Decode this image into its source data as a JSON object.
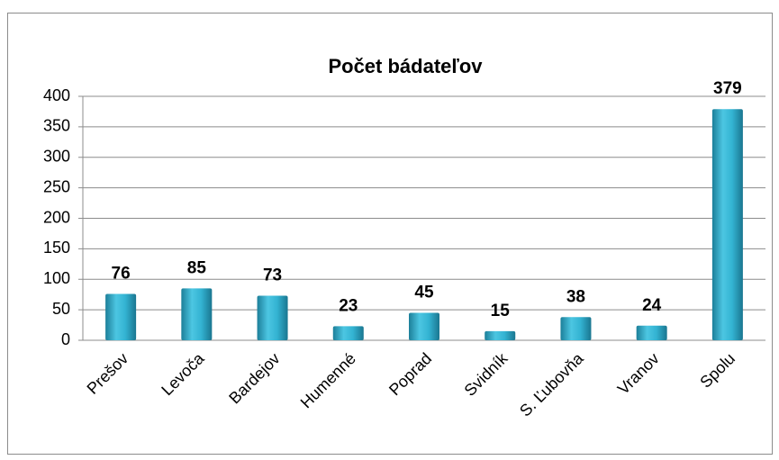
{
  "chart_data": {
    "type": "bar",
    "title": "Počet bádateľov",
    "categories": [
      "Prešov",
      "Levoča",
      "Bardejov",
      "Humenné",
      "Poprad",
      "Svidník",
      "S. Ľubovňa",
      "Vranov",
      "Spolu"
    ],
    "values": [
      76,
      85,
      73,
      23,
      45,
      15,
      38,
      24,
      379
    ],
    "color": "#33b3d2",
    "ylim": [
      0,
      400
    ],
    "yticks": [
      0,
      50,
      100,
      150,
      200,
      250,
      300,
      350,
      400
    ],
    "grid": true
  }
}
